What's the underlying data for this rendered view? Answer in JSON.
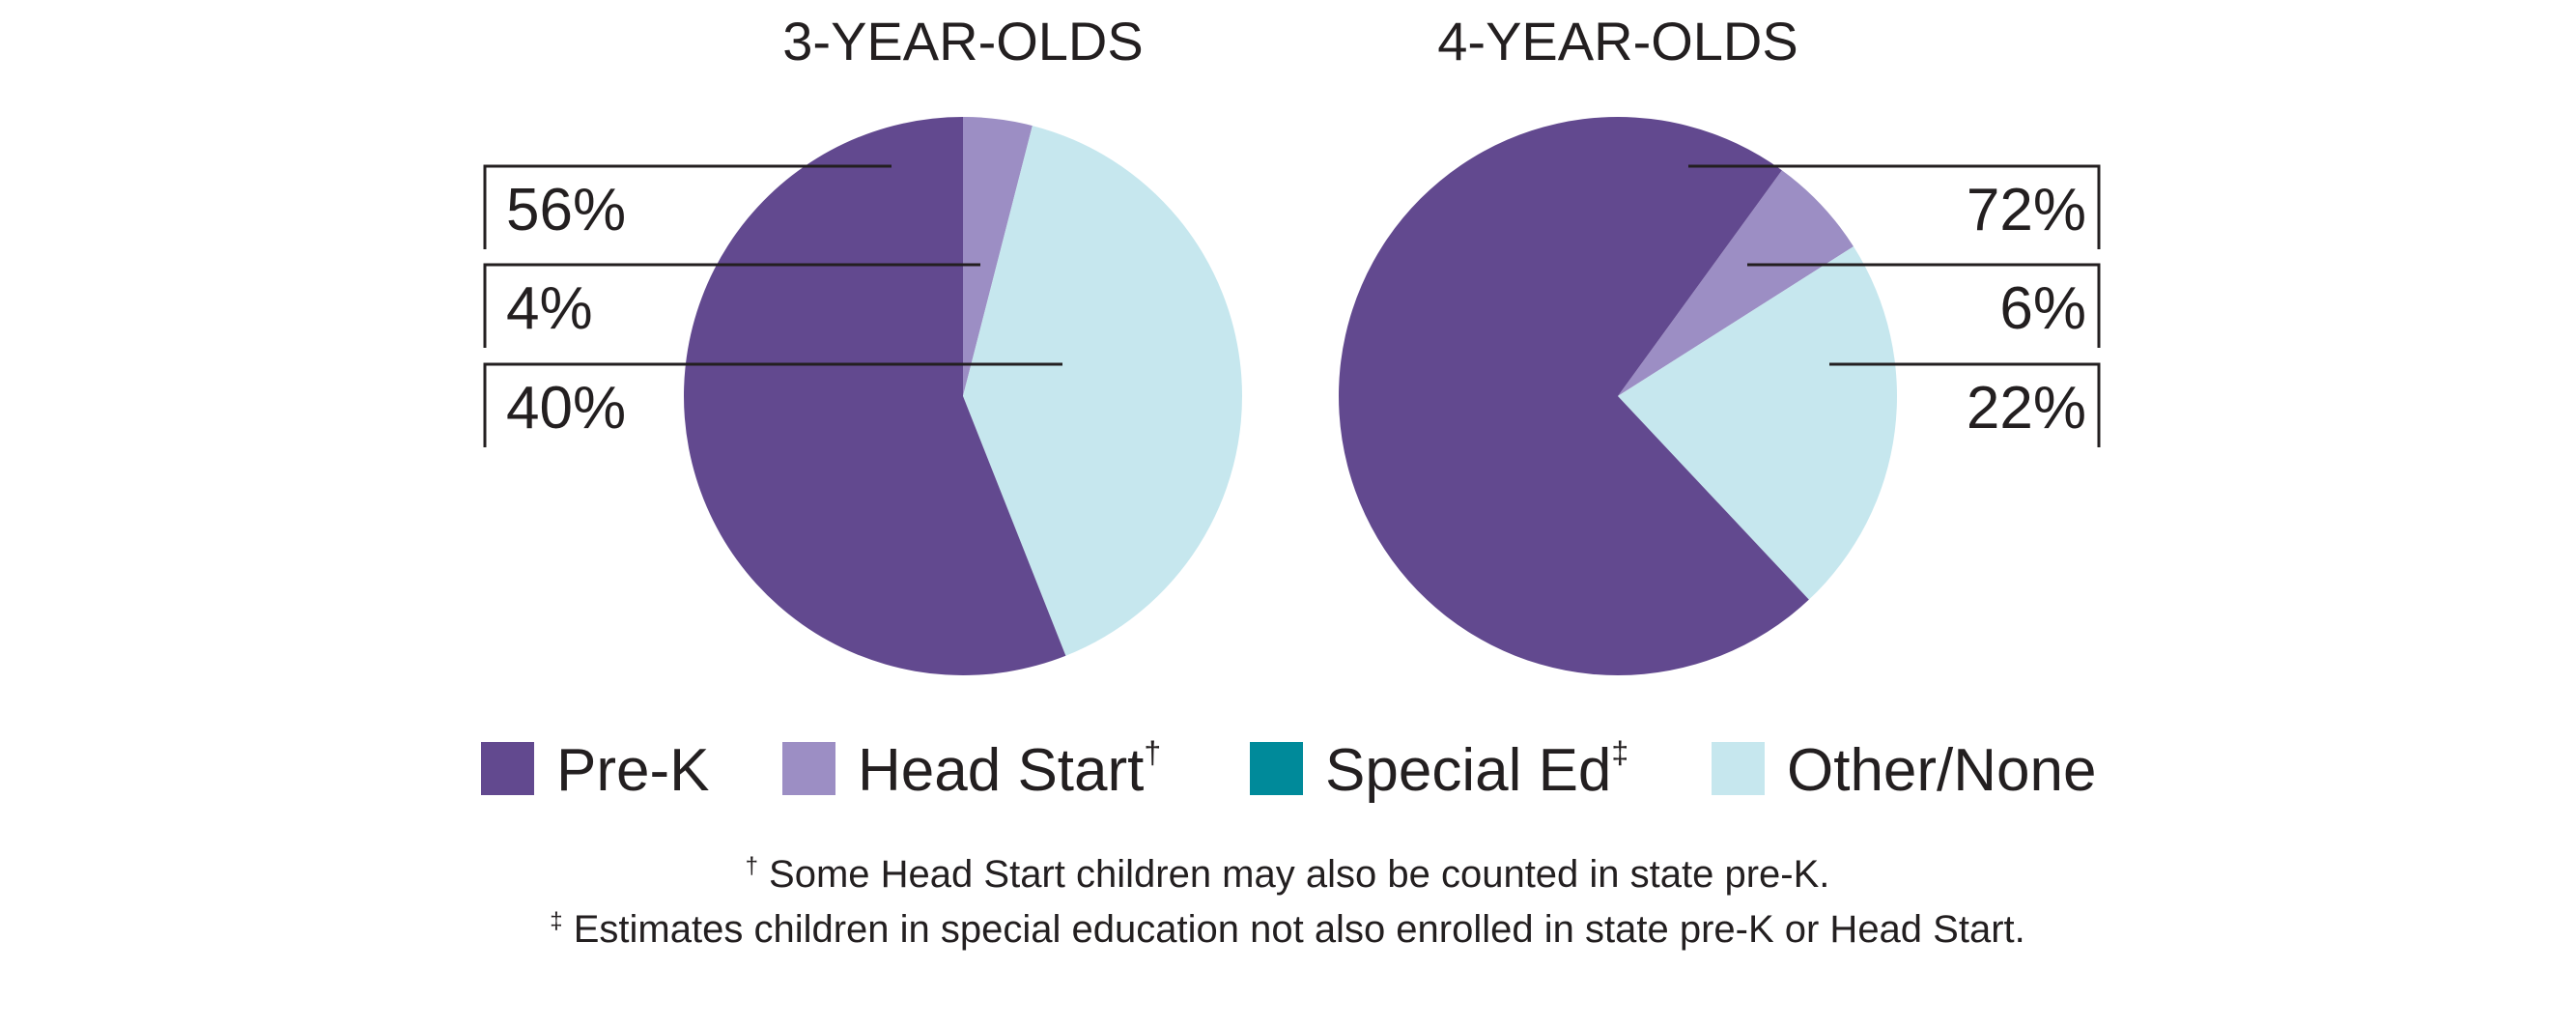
{
  "chart_data": [
    {
      "type": "pie",
      "title": "3-YEAR-OLDS",
      "slices": [
        {
          "name": "Head Start",
          "value": 4,
          "label": "4%"
        },
        {
          "name": "Other/None",
          "value": 40,
          "label": "40%"
        },
        {
          "name": "Pre-K",
          "value": 56,
          "label": "56%"
        }
      ],
      "label_order": [
        "56%",
        "4%",
        "40%"
      ],
      "start_angle_deg": 0
    },
    {
      "type": "pie",
      "title": "4-YEAR-OLDS",
      "slices": [
        {
          "name": "Head Start",
          "value": 6,
          "label": "6%"
        },
        {
          "name": "Other/None",
          "value": 22,
          "label": "22%"
        },
        {
          "name": "Pre-K",
          "value": 72,
          "label": "72%"
        }
      ],
      "label_order": [
        "72%",
        "6%",
        "22%"
      ],
      "start_angle_deg": 36
    }
  ],
  "legend": [
    {
      "name": "Pre-K",
      "label": "Pre-K",
      "sup": "",
      "color": "#62498f"
    },
    {
      "name": "Head Start",
      "label": "Head Start",
      "sup": "†",
      "color": "#9c8ec4"
    },
    {
      "name": "Special Ed",
      "label": "Special Ed",
      "sup": "‡",
      "color": "#008a9a"
    },
    {
      "name": "Other/None",
      "label": "Other/None",
      "sup": "",
      "color": "#c6e7ee"
    }
  ],
  "footnotes": [
    {
      "mark": "†",
      "text": " Some Head Start children may also be counted in state pre-K."
    },
    {
      "mark": "‡",
      "text": " Estimates children in special education not also enrolled in state pre-K or Head Start."
    }
  ]
}
